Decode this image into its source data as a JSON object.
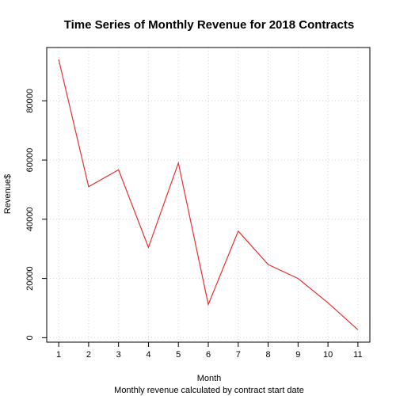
{
  "chart_data": {
    "type": "line",
    "title": "Time Series of Monthly Revenue for 2018 Contracts",
    "xlabel": "Month",
    "subtitle": "Monthly revenue calculated by contract start date",
    "ylabel": "Revenue$",
    "x": [
      1,
      2,
      3,
      4,
      5,
      6,
      7,
      8,
      9,
      10,
      11
    ],
    "series": [
      {
        "values": [
          94000,
          51000,
          56700,
          30500,
          59000,
          11200,
          36000,
          24700,
          20000,
          11800,
          2700
        ],
        "color": "#e83030"
      }
    ],
    "x_ticks": [
      "1",
      "2",
      "3",
      "4",
      "5",
      "6",
      "7",
      "8",
      "9",
      "10",
      "11"
    ],
    "y_ticks": [
      "0",
      "20000",
      "40000",
      "60000",
      "80000"
    ],
    "xlim": [
      0.6,
      11.4
    ],
    "ylim": [
      -1500,
      98000
    ],
    "grid": true
  }
}
